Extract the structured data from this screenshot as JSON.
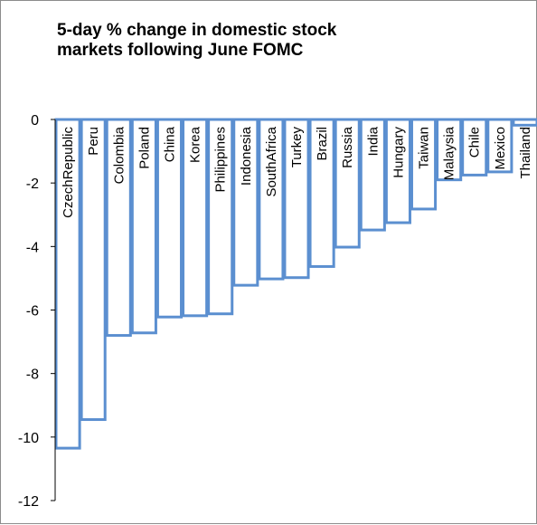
{
  "chart_data": {
    "type": "bar",
    "title_lines": [
      "5-day % change in domestic stock",
      "markets following June FOMC"
    ],
    "xlabel": "",
    "ylabel": "",
    "ylim": [
      -12,
      0
    ],
    "yticks": [
      0,
      -2,
      -4,
      -6,
      -8,
      -10,
      -12
    ],
    "grid": false,
    "legend": "none",
    "bar_style": "outline",
    "bar_color": "#5b8fd0",
    "categories": [
      "CzechRepublic",
      "Peru",
      "Colombia",
      "Poland",
      "China",
      "Korea",
      "Philippines",
      "Indonesia",
      "SouthAfrica",
      "Turkey",
      "Brazil",
      "Russia",
      "India",
      "Hungary",
      "Taiwan",
      "Malaysia",
      "Chile",
      "Mexico",
      "Thailand"
    ],
    "values": [
      -10.35,
      -9.45,
      -6.8,
      -6.72,
      -6.22,
      -6.18,
      -6.12,
      -5.22,
      -5.02,
      -4.98,
      -4.63,
      -4.02,
      -3.48,
      -3.25,
      -2.82,
      -1.9,
      -1.75,
      -1.65,
      -0.18
    ]
  }
}
